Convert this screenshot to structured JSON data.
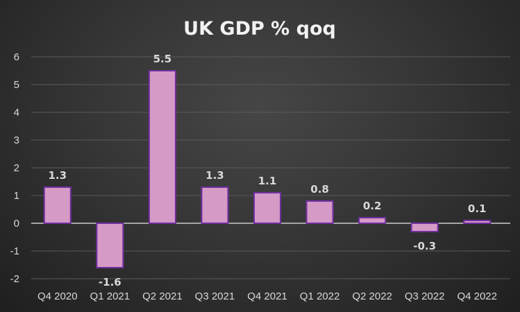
{
  "chart_data": {
    "type": "bar",
    "title": "UK GDP % qoq",
    "categories": [
      "Q4 2020",
      "Q1 2021",
      "Q2 2021",
      "Q3 2021",
      "Q4 2021",
      "Q1 2022",
      "Q2 2022",
      "Q3 2022",
      "Q4 2022"
    ],
    "values": [
      1.3,
      -1.6,
      5.5,
      1.3,
      1.1,
      0.8,
      0.2,
      -0.3,
      0.1
    ],
    "data_labels": [
      "1.3",
      "-1.6",
      "5.5",
      "1.3",
      "1.1",
      "0.8",
      "0.2",
      "-0.3",
      "0.1"
    ],
    "yticks": [
      "-2",
      "-1",
      "0",
      "1",
      "2",
      "3",
      "4",
      "5",
      "6"
    ],
    "ylim": [
      -2,
      6
    ],
    "xlabel": "",
    "ylabel": "",
    "grid": true,
    "legend": "none",
    "colors": {
      "bar_fill": "#d59ac6",
      "bar_stroke": "#7030a0",
      "grid": "#5a5a5a",
      "zero_line": "#a6a6a6"
    }
  }
}
